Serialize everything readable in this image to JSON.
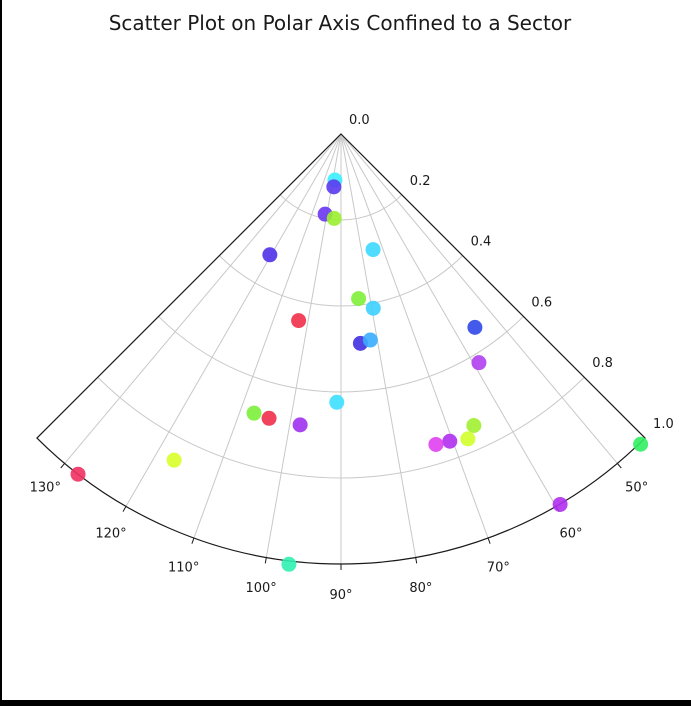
{
  "chart_data": {
    "type": "scatter",
    "projection": "polar",
    "title": "Scatter Plot on Polar Axis Confined to a Sector",
    "theta_range_deg": [
      45,
      135
    ],
    "r_range": [
      0,
      1
    ],
    "theta_ticks": [
      50,
      60,
      70,
      80,
      90,
      100,
      110,
      120,
      130
    ],
    "theta_tick_labels": [
      "50°",
      "60°",
      "70°",
      "80°",
      "90°",
      "100°",
      "110°",
      "120°",
      "130°"
    ],
    "r_ticks": [
      0.0,
      0.2,
      0.4,
      0.6,
      0.8,
      1.0
    ],
    "r_tick_labels": [
      "0.0",
      "0.2",
      "0.4",
      "0.6",
      "0.8",
      "1.0"
    ],
    "grid": true,
    "points": [
      {
        "theta": 97.5,
        "r": 0.108,
        "color": "#3df0ff"
      },
      {
        "theta": 97.7,
        "r": 0.124,
        "color": "#5a3af0"
      },
      {
        "theta": 101.2,
        "r": 0.19,
        "color": "#6a36f0"
      },
      {
        "theta": 94.6,
        "r": 0.197,
        "color": "#9af030"
      },
      {
        "theta": 74.5,
        "r": 0.279,
        "color": "#3dd8ff"
      },
      {
        "theta": 120.5,
        "r": 0.326,
        "color": "#5030e8"
      },
      {
        "theta": 83.9,
        "r": 0.385,
        "color": "#80f03a"
      },
      {
        "theta": 79.5,
        "r": 0.412,
        "color": "#3dd0ff"
      },
      {
        "theta": 102.8,
        "r": 0.445,
        "color": "#f0304a"
      },
      {
        "theta": 84.7,
        "r": 0.489,
        "color": "#4030e0"
      },
      {
        "theta": 81.9,
        "r": 0.484,
        "color": "#3aacff"
      },
      {
        "theta": 55.3,
        "r": 0.547,
        "color": "#3048e8"
      },
      {
        "theta": 58.9,
        "r": 0.621,
        "color": "#b040f0"
      },
      {
        "theta": 90.9,
        "r": 0.624,
        "color": "#3de0ff"
      },
      {
        "theta": 107.3,
        "r": 0.68,
        "color": "#7cf03a"
      },
      {
        "theta": 104.2,
        "r": 0.682,
        "color": "#f0304a"
      },
      {
        "theta": 98.0,
        "r": 0.683,
        "color": "#a030f0"
      },
      {
        "theta": 65.5,
        "r": 0.745,
        "color": "#a0f030"
      },
      {
        "theta": 67.4,
        "r": 0.768,
        "color": "#d0ff2a"
      },
      {
        "theta": 70.5,
        "r": 0.758,
        "color": "#b030f0"
      },
      {
        "theta": 73.0,
        "r": 0.755,
        "color": "#e040f0"
      },
      {
        "theta": 117.1,
        "r": 0.852,
        "color": "#d8ff2a"
      },
      {
        "theta": 127.7,
        "r": 1.0,
        "color": "#f03060"
      },
      {
        "theta": 46.0,
        "r": 1.003,
        "color": "#30f060"
      },
      {
        "theta": 59.4,
        "r": 1.001,
        "color": "#b030f0"
      },
      {
        "theta": 96.9,
        "r": 1.008,
        "color": "#30f0b0"
      }
    ]
  }
}
